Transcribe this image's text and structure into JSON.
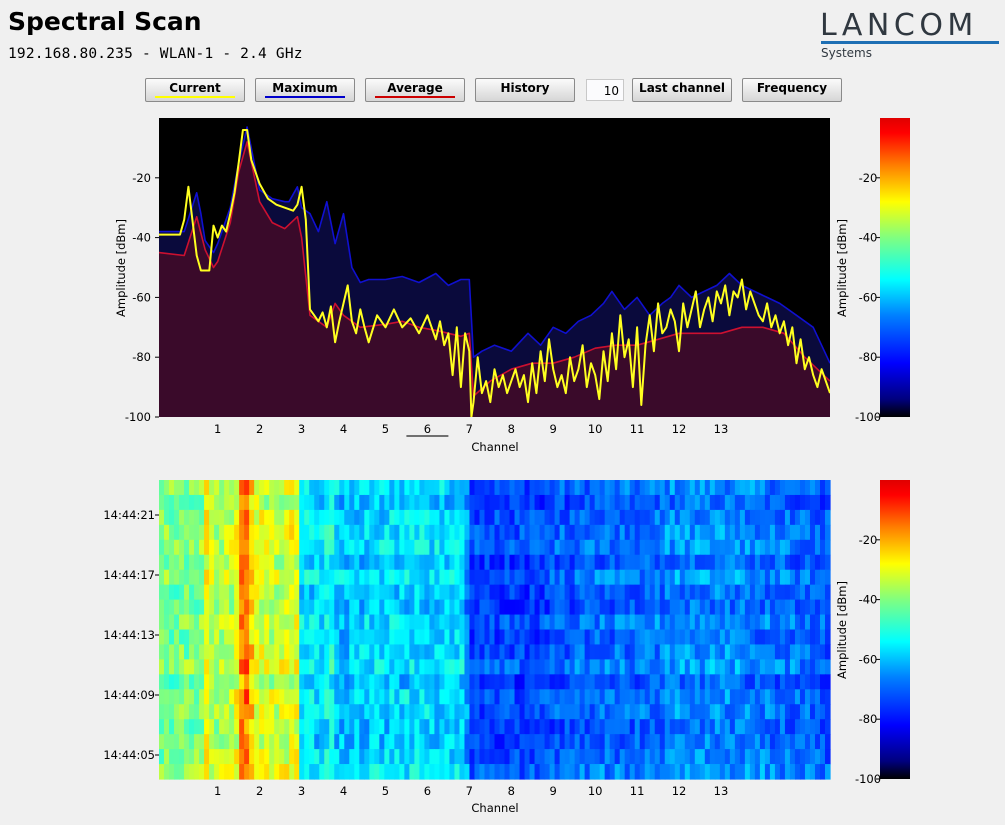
{
  "header": {
    "title": "Spectral Scan",
    "subtitle": "192.168.80.235 - WLAN-1 - 2.4 GHz"
  },
  "logo": {
    "name": "LANCOM",
    "tagline": "Systems",
    "accent": "#1e6fb4"
  },
  "toolbar": {
    "buttons": [
      {
        "id": "current",
        "label": "Current",
        "underline": "#ffff00"
      },
      {
        "id": "maximum",
        "label": "Maximum",
        "underline": "#0000cc"
      },
      {
        "id": "average",
        "label": "Average",
        "underline": "#cc0000"
      },
      {
        "id": "history",
        "label": "History",
        "underline": ""
      }
    ],
    "history_value": "10",
    "last_channel_label": "Last channel",
    "frequency_label": "Frequency"
  },
  "chart_data": [
    {
      "type": "area",
      "xlabel": "Channel",
      "ylabel": "Amplitude [dBm]",
      "ylim": [
        -100,
        0
      ],
      "yticks": [
        -20,
        -40,
        -60,
        -80,
        -100
      ],
      "xticks": [
        "1",
        "2",
        "3",
        "4",
        "5",
        "6",
        "7",
        "8",
        "9",
        "10",
        "11",
        "12",
        "13"
      ],
      "selected_channel": "6",
      "x_range": [
        -0.4,
        15.6
      ],
      "series": [
        {
          "name": "Maximum",
          "color": "#1010d0",
          "x": [
            -0.4,
            0.2,
            0.5,
            0.6,
            0.7,
            0.9,
            1.0,
            1.3,
            1.5,
            1.7,
            2.0,
            2.3,
            2.6,
            2.7,
            2.9,
            3.0,
            3.2,
            3.4,
            3.6,
            3.8,
            4.0,
            4.2,
            4.4,
            4.6,
            5.0,
            5.4,
            5.8,
            6.2,
            6.5,
            6.8,
            7.0,
            7.1,
            7.3,
            7.6,
            8.0,
            8.4,
            8.7,
            9.0,
            9.3,
            9.6,
            9.9,
            10.2,
            10.4,
            10.7,
            11.0,
            11.3,
            11.6,
            11.8,
            12.0,
            12.3,
            12.6,
            12.9,
            13.2,
            13.5,
            13.8,
            14.1,
            14.4,
            14.8,
            15.2,
            15.6
          ],
          "y": [
            -38,
            -38,
            -25,
            -32,
            -41,
            -45,
            -42,
            -30,
            -15,
            -3,
            -24,
            -27,
            -28,
            -28,
            -23,
            -30,
            -32,
            -38,
            -28,
            -42,
            -32,
            -50,
            -55,
            -54,
            -54,
            -53,
            -55,
            -52,
            -56,
            -54,
            -54,
            -80,
            -78,
            -76,
            -78,
            -72,
            -76,
            -70,
            -72,
            -68,
            -66,
            -62,
            -58,
            -64,
            -60,
            -66,
            -62,
            -60,
            -56,
            -60,
            -58,
            -56,
            -52,
            -56,
            -58,
            -60,
            -62,
            -66,
            -70,
            -82
          ]
        },
        {
          "name": "Average",
          "color": "#cc1030",
          "x": [
            -0.4,
            0.2,
            0.5,
            0.7,
            0.9,
            1.0,
            1.3,
            1.5,
            1.7,
            2.0,
            2.3,
            2.6,
            2.9,
            3.0,
            3.2,
            3.4,
            3.6,
            3.8,
            4.0,
            4.4,
            5.0,
            5.4,
            5.8,
            6.2,
            6.5,
            6.8,
            7.0,
            7.1,
            7.5,
            8.0,
            8.5,
            9.0,
            9.5,
            10.0,
            10.5,
            11.0,
            11.5,
            12.0,
            12.5,
            13.0,
            13.5,
            14.0,
            14.5,
            15.0,
            15.6
          ],
          "y": [
            -45,
            -46,
            -33,
            -44,
            -50,
            -48,
            -35,
            -18,
            -8,
            -28,
            -35,
            -37,
            -33,
            -40,
            -66,
            -68,
            -70,
            -62,
            -66,
            -70,
            -69,
            -68,
            -70,
            -71,
            -72,
            -73,
            -72,
            -93,
            -88,
            -84,
            -82,
            -82,
            -80,
            -77,
            -76,
            -76,
            -74,
            -72,
            -72,
            -72,
            -70,
            -70,
            -72,
            -80,
            -88
          ]
        },
        {
          "name": "Current",
          "color": "#ffff20",
          "x": [
            -0.4,
            0.1,
            0.2,
            0.3,
            0.5,
            0.6,
            0.8,
            0.9,
            1.0,
            1.1,
            1.2,
            1.3,
            1.4,
            1.5,
            1.6,
            1.7,
            1.8,
            2.0,
            2.2,
            2.4,
            2.6,
            2.8,
            2.9,
            3.0,
            3.1,
            3.2,
            3.3,
            3.4,
            3.5,
            3.6,
            3.7,
            3.8,
            3.9,
            4.0,
            4.1,
            4.2,
            4.3,
            4.4,
            4.5,
            4.6,
            4.8,
            5.0,
            5.2,
            5.4,
            5.6,
            5.8,
            6.0,
            6.2,
            6.3,
            6.4,
            6.5,
            6.6,
            6.7,
            6.8,
            6.9,
            7.0,
            7.05,
            7.1,
            7.2,
            7.3,
            7.4,
            7.5,
            7.6,
            7.7,
            7.8,
            7.9,
            8.0,
            8.1,
            8.2,
            8.3,
            8.4,
            8.5,
            8.6,
            8.7,
            8.8,
            8.9,
            9.0,
            9.1,
            9.2,
            9.3,
            9.4,
            9.5,
            9.6,
            9.7,
            9.8,
            9.9,
            10.0,
            10.1,
            10.2,
            10.3,
            10.4,
            10.5,
            10.6,
            10.7,
            10.8,
            10.9,
            11.0,
            11.1,
            11.2,
            11.3,
            11.4,
            11.5,
            11.6,
            11.7,
            11.8,
            11.9,
            12.0,
            12.1,
            12.2,
            12.3,
            12.4,
            12.5,
            12.6,
            12.7,
            12.8,
            12.9,
            13.0,
            13.1,
            13.2,
            13.3,
            13.4,
            13.5,
            13.6,
            13.7,
            13.8,
            13.9,
            14.0,
            14.1,
            14.2,
            14.3,
            14.4,
            14.5,
            14.6,
            14.7,
            14.8,
            14.9,
            15.0,
            15.1,
            15.2,
            15.3,
            15.4,
            15.5,
            15.6
          ],
          "y": [
            -39,
            -39,
            -34,
            -23,
            -46,
            -51,
            -51,
            -36,
            -40,
            -36,
            -38,
            -32,
            -25,
            -15,
            -4,
            -4,
            -14,
            -22,
            -27,
            -29,
            -30,
            -31,
            -29,
            -23,
            -34,
            -64,
            -66,
            -68,
            -65,
            -70,
            -63,
            -75,
            -68,
            -62,
            -56,
            -68,
            -72,
            -64,
            -70,
            -75,
            -66,
            -70,
            -64,
            -70,
            -67,
            -72,
            -66,
            -74,
            -68,
            -76,
            -72,
            -86,
            -70,
            -90,
            -72,
            -78,
            -100,
            -95,
            -80,
            -92,
            -88,
            -95,
            -84,
            -90,
            -86,
            -92,
            -88,
            -84,
            -90,
            -86,
            -95,
            -82,
            -92,
            -78,
            -88,
            -74,
            -84,
            -90,
            -86,
            -92,
            -80,
            -88,
            -84,
            -76,
            -90,
            -82,
            -86,
            -94,
            -78,
            -88,
            -72,
            -84,
            -66,
            -80,
            -74,
            -90,
            -70,
            -96,
            -76,
            -66,
            -78,
            -62,
            -72,
            -70,
            -64,
            -68,
            -78,
            -62,
            -70,
            -64,
            -58,
            -70,
            -64,
            -60,
            -68,
            -58,
            -62,
            -56,
            -66,
            -58,
            -60,
            -54,
            -64,
            -58,
            -62,
            -66,
            -68,
            -62,
            -70,
            -66,
            -72,
            -68,
            -76,
            -70,
            -82,
            -74,
            -84,
            -80,
            -86,
            -90,
            -84,
            -88,
            -92
          ]
        }
      ],
      "colorbar": {
        "label": "Amplitude [dBm]",
        "ticks": [
          -20,
          -40,
          -60,
          -80,
          -100
        ],
        "range": [
          -100,
          0
        ]
      }
    },
    {
      "type": "heatmap",
      "xlabel": "Channel",
      "xticks": [
        "1",
        "2",
        "3",
        "4",
        "5",
        "6",
        "7",
        "8",
        "9",
        "10",
        "11",
        "12",
        "13"
      ],
      "ytick_labels": [
        "14:44:21",
        "14:44:17",
        "14:44:13",
        "14:44:09",
        "14:44:05"
      ],
      "rows": 20,
      "value_range": [
        -100,
        0
      ],
      "profile": {
        "x": [
          -0.4,
          0.6,
          0.7,
          0.9,
          1.3,
          1.5,
          1.6,
          1.7,
          1.9,
          2.2,
          2.5,
          2.9,
          3.0,
          3.5,
          3.7,
          3.8,
          4.0,
          5.0,
          6.0,
          6.9,
          7.0,
          8.5,
          9.0,
          10.0,
          11.0,
          12.0,
          13.0,
          14.0,
          15.6
        ],
        "y": [
          -42,
          -42,
          -26,
          -38,
          -36,
          -30,
          -12,
          -16,
          -30,
          -34,
          -34,
          -30,
          -56,
          -58,
          -52,
          -58,
          -60,
          -58,
          -58,
          -58,
          -74,
          -74,
          -72,
          -70,
          -70,
          -66,
          -66,
          -68,
          -72
        ]
      },
      "colorbar": {
        "label": "Amplitude [dBm]",
        "ticks": [
          -20,
          -40,
          -60,
          -80,
          -100
        ],
        "range": [
          -100,
          0
        ]
      }
    }
  ]
}
